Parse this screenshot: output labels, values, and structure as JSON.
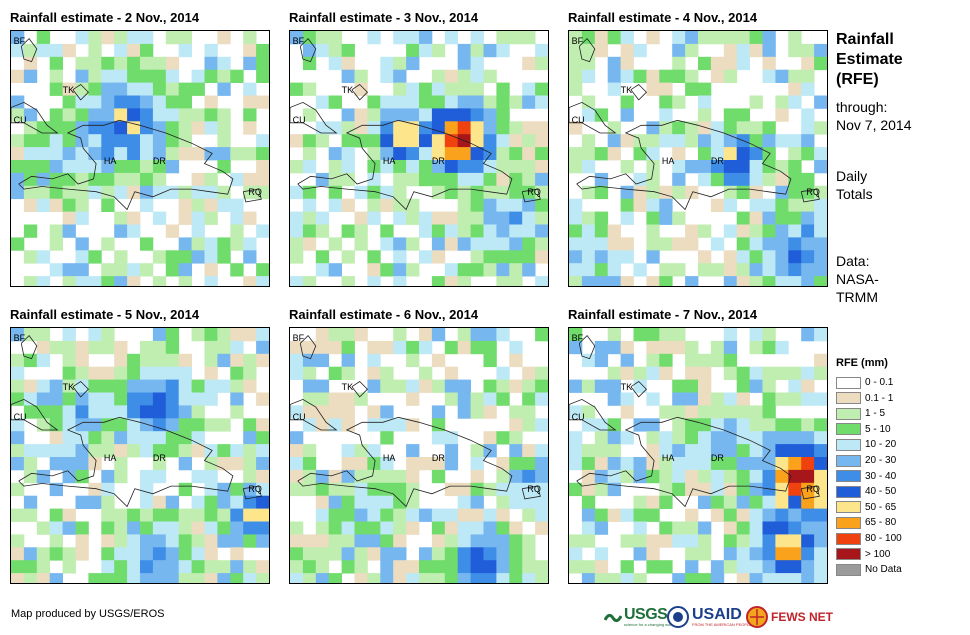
{
  "panels": [
    {
      "title": "Rainfall estimate - 2 Nov., 2014",
      "seed": 11,
      "hot": [
        [
          0.45,
          0.35,
          0.28,
          7
        ],
        [
          0.35,
          0.45,
          0.22,
          5
        ],
        [
          0.2,
          0.5,
          0.2,
          4
        ]
      ]
    },
    {
      "title": "Rainfall estimate - 3 Nov., 2014",
      "seed": 23,
      "hot": [
        [
          0.65,
          0.42,
          0.22,
          11
        ],
        [
          0.45,
          0.4,
          0.18,
          9
        ],
        [
          0.85,
          0.75,
          0.2,
          5
        ]
      ]
    },
    {
      "title": "Rainfall estimate - 4 Nov., 2014",
      "seed": 37,
      "hot": [
        [
          0.65,
          0.5,
          0.15,
          9
        ],
        [
          0.9,
          0.85,
          0.25,
          6
        ],
        [
          0.05,
          0.85,
          0.15,
          5
        ]
      ]
    },
    {
      "title": "Rainfall estimate - 5 Nov., 2014",
      "seed": 41,
      "hot": [
        [
          0.55,
          0.3,
          0.22,
          7
        ],
        [
          0.95,
          0.72,
          0.15,
          8
        ],
        [
          0.55,
          0.9,
          0.22,
          6
        ],
        [
          0.3,
          0.35,
          0.18,
          5
        ]
      ]
    },
    {
      "title": "Rainfall estimate - 6 Nov., 2014",
      "seed": 53,
      "hot": [
        [
          0.75,
          0.9,
          0.2,
          7
        ],
        [
          0.95,
          0.6,
          0.15,
          5
        ],
        [
          0.3,
          0.7,
          0.2,
          4
        ]
      ]
    },
    {
      "title": "Rainfall estimate - 7 Nov., 2014",
      "seed": 67,
      "hot": [
        [
          0.9,
          0.58,
          0.25,
          11
        ],
        [
          0.85,
          0.85,
          0.25,
          8
        ],
        [
          0.6,
          0.45,
          0.2,
          4
        ]
      ]
    }
  ],
  "map_labels": {
    "bf": "BF",
    "tk": "TK",
    "cu": "CU",
    "ha": "HA",
    "dr": "DR",
    "rq": "RQ"
  },
  "sidebar": {
    "title": [
      "Rainfall",
      "Estimate",
      "(RFE)"
    ],
    "through_label": "through:",
    "through_date": "Nov 7, 2014",
    "totals": [
      "Daily",
      "Totals"
    ],
    "data_source": [
      "Data:",
      "NASA-",
      "TRMM"
    ]
  },
  "legend": {
    "title": "RFE (mm)",
    "items": [
      {
        "label": "0 - 0.1",
        "color": "#ffffff"
      },
      {
        "label": "0.1 - 1",
        "color": "#ecdcc0"
      },
      {
        "label": "1 - 5",
        "color": "#bfeeb0"
      },
      {
        "label": "5 - 10",
        "color": "#6fdc6c"
      },
      {
        "label": "10 - 20",
        "color": "#bde9f6"
      },
      {
        "label": "20 - 30",
        "color": "#77b7f0"
      },
      {
        "label": "30 - 40",
        "color": "#3e8ee8"
      },
      {
        "label": "40 - 50",
        "color": "#1f5ed8"
      },
      {
        "label": "50 - 65",
        "color": "#fde58c"
      },
      {
        "label": "65 - 80",
        "color": "#fba21c"
      },
      {
        "label": "80 - 100",
        "color": "#f0420f"
      },
      {
        "label": "> 100",
        "color": "#a6161a"
      },
      {
        "label": "No Data",
        "color": "#9b9b9b"
      }
    ]
  },
  "credit": "Map produced by USGS/EROS",
  "logos": {
    "usgs": "USGS",
    "usgs_tag": "science for a changing world",
    "usaid": "USAID",
    "usaid_tag": "FROM THE AMERICAN PEOPLE",
    "fewsnet": "FEWS NET"
  }
}
